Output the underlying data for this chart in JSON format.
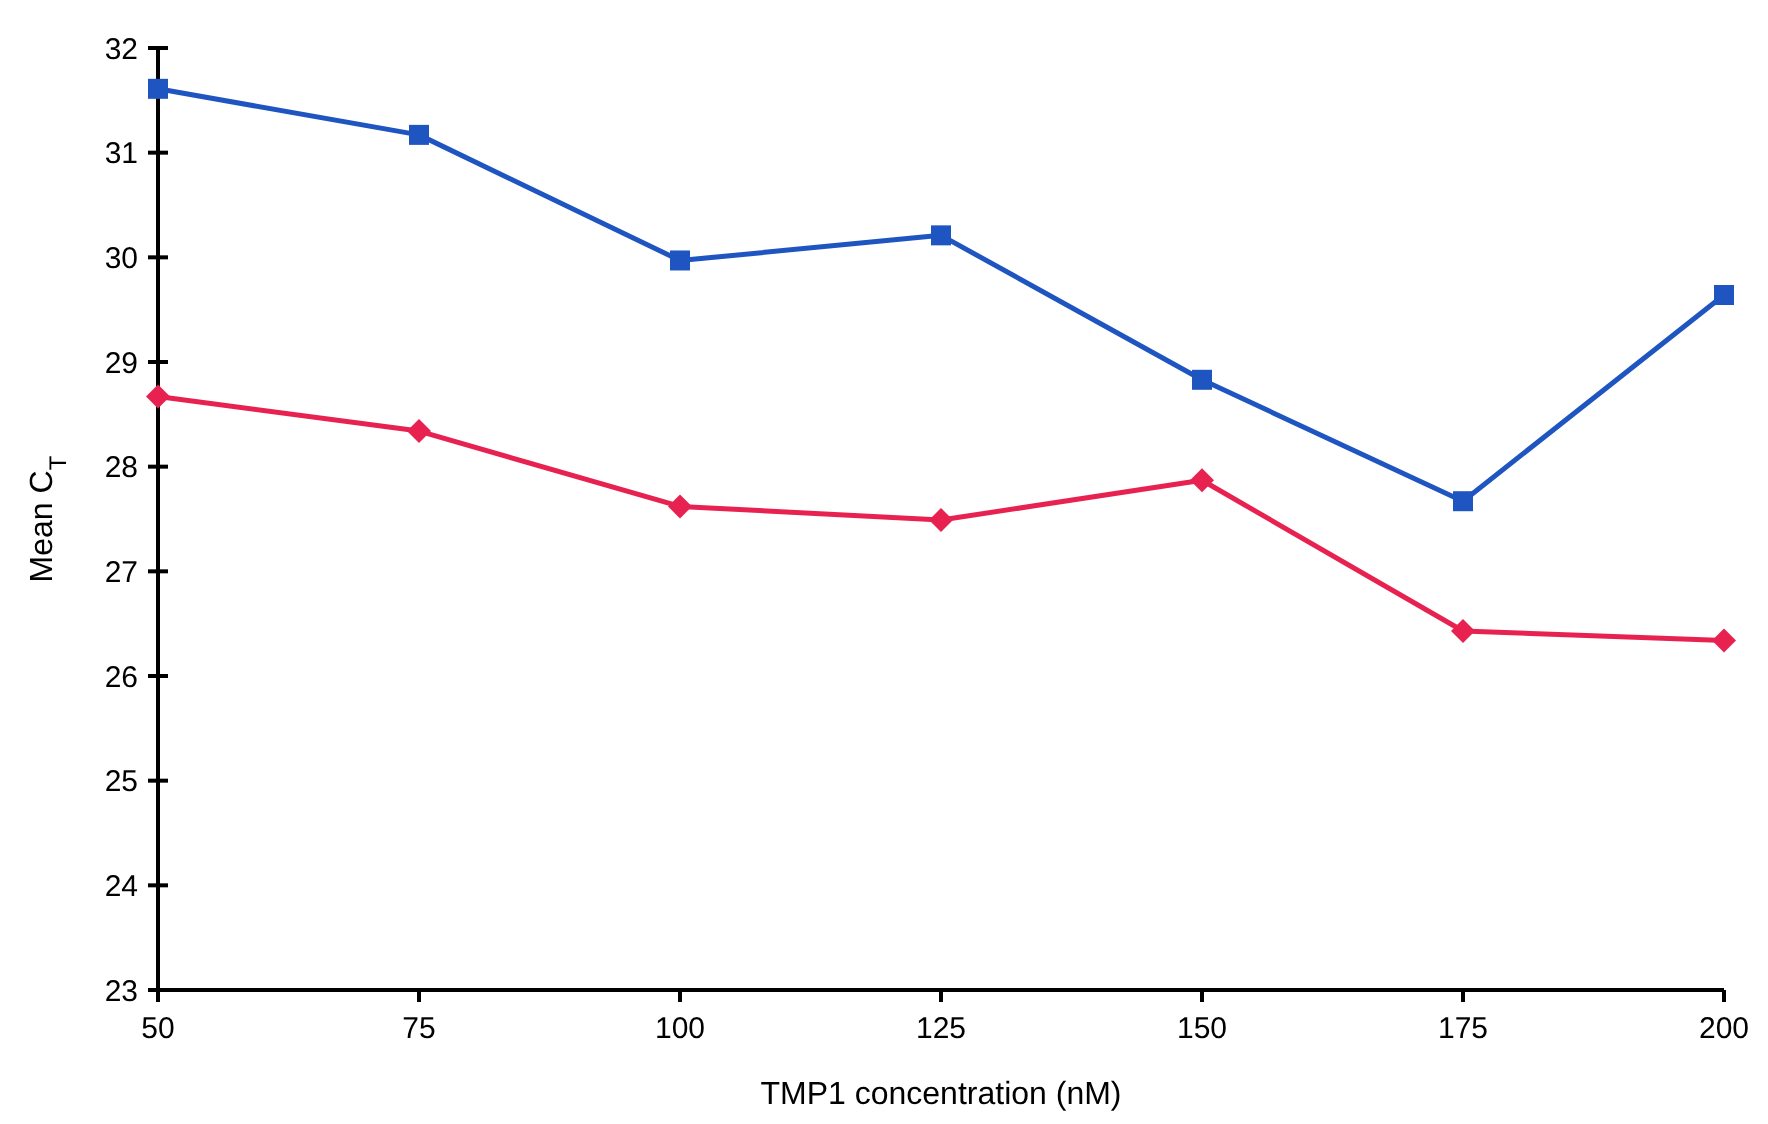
{
  "chart_data": {
    "type": "line",
    "xlabel": "TMP1 concentration (nM)",
    "ylabel": "Mean C$_{T}$",
    "x": [
      50,
      75,
      100,
      125,
      150,
      175,
      200
    ],
    "xlim": [
      50,
      200
    ],
    "xticks": [
      50,
      75,
      100,
      125,
      150,
      175,
      200
    ],
    "ylim": [
      23,
      32
    ],
    "yticks": [
      23,
      24,
      25,
      26,
      27,
      28,
      29,
      30,
      31,
      32
    ],
    "grid": false,
    "line_style": "solid",
    "series": [
      {
        "color": "#1f55c0",
        "marker": "square",
        "values": [
          31.61,
          31.17,
          29.97,
          30.21,
          28.83,
          27.67,
          29.64
        ]
      },
      {
        "color": "#e82250",
        "marker": "diamond",
        "values": [
          28.67,
          28.34,
          27.62,
          27.49,
          27.87,
          26.43,
          26.34
        ]
      }
    ]
  }
}
